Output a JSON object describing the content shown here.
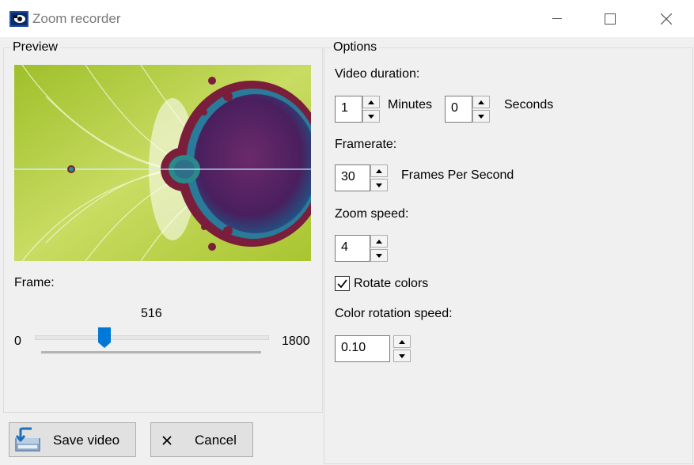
{
  "window": {
    "title": "Zoom recorder",
    "minimize_icon": "minimize-icon",
    "maximize_icon": "maximize-icon",
    "close_icon": "close-icon"
  },
  "preview": {
    "group_label": "Preview",
    "image": "mandelbrot-fractal-preview",
    "frame_label": "Frame:",
    "frame_value": "516",
    "slider_min": "0",
    "slider_max": "1800",
    "slider_position": 0.2867
  },
  "options": {
    "group_label": "Options",
    "video_duration_label": "Video duration:",
    "minutes_value": "1",
    "minutes_label": "Minutes",
    "seconds_value": "0",
    "seconds_label": "Seconds",
    "framerate_label": "Framerate:",
    "framerate_value": "30",
    "fps_label": "Frames Per Second",
    "zoom_speed_label": "Zoom speed:",
    "zoom_speed_value": "4",
    "rotate_colors_label": "Rotate colors",
    "rotate_colors_checked": true,
    "color_rotation_speed_label": "Color rotation speed:",
    "color_rotation_speed_value": "0.10"
  },
  "buttons": {
    "save_label": "Save video",
    "save_icon": "save-video-icon",
    "cancel_label": "Cancel",
    "cancel_icon": "cancel-x-icon"
  }
}
